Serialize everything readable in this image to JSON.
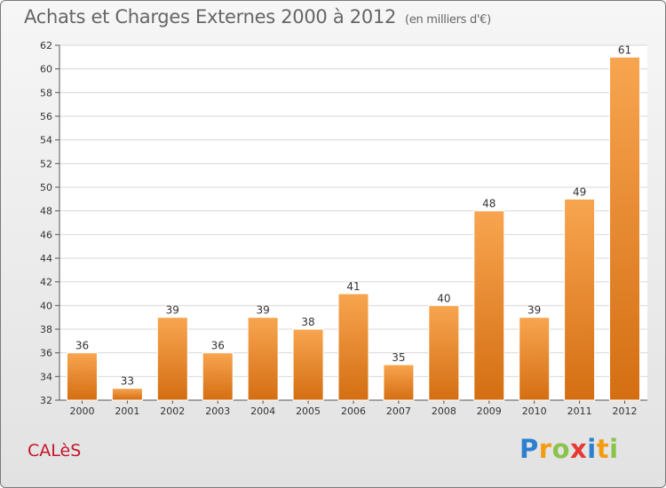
{
  "chart_data": {
    "type": "bar",
    "title": "Achats et Charges Externes 2000 à 2012",
    "subtitle": "(en milliers d'€)",
    "categories": [
      "2000",
      "2001",
      "2002",
      "2003",
      "2004",
      "2005",
      "2006",
      "2007",
      "2008",
      "2009",
      "2010",
      "2011",
      "2012"
    ],
    "values": [
      36,
      33,
      39,
      36,
      39,
      38,
      41,
      35,
      40,
      48,
      39,
      49,
      61
    ],
    "ylim": [
      32,
      62
    ],
    "yticks": [
      32,
      34,
      36,
      38,
      40,
      42,
      44,
      46,
      48,
      50,
      52,
      54,
      56,
      58,
      60,
      62
    ],
    "grid": true,
    "bar_color": "#f08a2a",
    "xlabel": "",
    "ylabel": ""
  },
  "commune": "CALèS",
  "logo": {
    "letters": [
      "P",
      "r",
      "o",
      "x",
      "i",
      "t",
      "i"
    ],
    "colors": [
      "#2d7fd0",
      "#f39c12",
      "#8bc34a",
      "#e53935",
      "#2d7fd0",
      "#f39c12",
      "#8bc34a"
    ]
  }
}
